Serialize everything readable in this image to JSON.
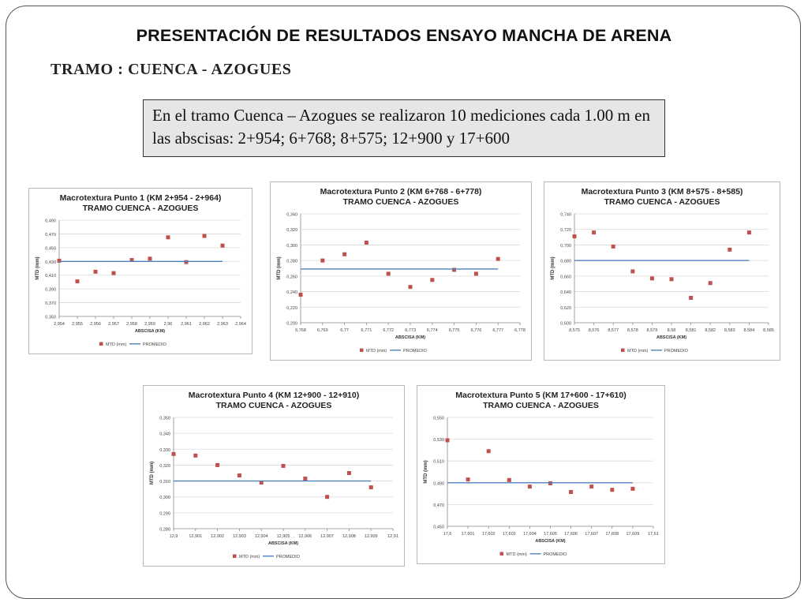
{
  "page": {
    "title": "PRESENTACIÓN DE RESULTADOS ENSAYO MANCHA DE ARENA",
    "subtitle": "TRAMO : CUENCA - AZOGUES",
    "note": "En el tramo Cuenca – Azogues se realizaron 10 mediciones cada 1.00 m en las abscisas: 2+954; 6+768; 8+575; 12+900 y 17+600"
  },
  "colors": {
    "points": "#c0504d",
    "mean_line": "#4f81bd",
    "grid": "#d9d9d9",
    "axis": "#888888"
  },
  "chart_data": [
    {
      "type": "scatter",
      "title": "Macrotextura Punto 1 (KM 2+954 - 2+964)",
      "subtitle": "TRAMO CUENCA - AZOGUES",
      "xlabel": "ABSCISA (KM)",
      "ylabel": "MTD (mm)",
      "x_ticks": [
        "2,954",
        "2,955",
        "2,956",
        "2,957",
        "2,958",
        "2,959",
        "2,96",
        "2,961",
        "2,962",
        "2,963",
        "2,964"
      ],
      "y_ticks": [
        "0,350",
        "0,370",
        "0,390",
        "0,410",
        "0,430",
        "0,450",
        "0,470",
        "0,490"
      ],
      "xlim": [
        2.954,
        2.964
      ],
      "ylim": [
        0.35,
        0.49
      ],
      "series": [
        {
          "name": "MTD (mm)",
          "kind": "points",
          "x": [
            2.954,
            2.955,
            2.956,
            2.957,
            2.958,
            2.959,
            2.96,
            2.961,
            2.962,
            2.963
          ],
          "y": [
            0.431,
            0.401,
            0.415,
            0.413,
            0.432,
            0.434,
            0.465,
            0.429,
            0.467,
            0.453
          ]
        },
        {
          "name": "PROMEDIO",
          "kind": "line",
          "x": [
            2.954,
            2.963
          ],
          "y": [
            0.43,
            0.43
          ]
        }
      ]
    },
    {
      "type": "scatter",
      "title": "Macrotextura Punto 2 (KM 6+768 - 6+778)",
      "subtitle": "TRAMO CUENCA - AZOGUES",
      "xlabel": "ABSCISA (KM)",
      "ylabel": "MTD (mm)",
      "x_ticks": [
        "6,768",
        "6,769",
        "6,77",
        "6,771",
        "6,772",
        "6,773",
        "6,774",
        "6,775",
        "6,776",
        "6,777",
        "6,778"
      ],
      "y_ticks": [
        "0,200",
        "0,220",
        "0,240",
        "0,260",
        "0,280",
        "0,300",
        "0,320",
        "0,340"
      ],
      "xlim": [
        6.768,
        6.778
      ],
      "ylim": [
        0.2,
        0.34
      ],
      "series": [
        {
          "name": "MTD (mm)",
          "kind": "points",
          "x": [
            6.768,
            6.769,
            6.77,
            6.771,
            6.772,
            6.773,
            6.774,
            6.775,
            6.776,
            6.777
          ],
          "y": [
            0.236,
            0.28,
            0.288,
            0.303,
            0.263,
            0.246,
            0.255,
            0.268,
            0.263,
            0.282
          ]
        },
        {
          "name": "PROMEDIO",
          "kind": "line",
          "x": [
            6.768,
            6.777
          ],
          "y": [
            0.269,
            0.269
          ]
        }
      ]
    },
    {
      "type": "scatter",
      "title": "Macrotextura Punto 3 (KM 8+575 - 8+585)",
      "subtitle": "TRAMO CUENCA - AZOGUES",
      "xlabel": "ABSCISA (KM)",
      "ylabel": "MTD (mm)",
      "x_ticks": [
        "8,575",
        "8,576",
        "8,577",
        "8,578",
        "8,579",
        "8,58",
        "8,581",
        "8,582",
        "8,583",
        "8,584",
        "8,585"
      ],
      "y_ticks": [
        "0,600",
        "0,620",
        "0,640",
        "0,660",
        "0,680",
        "0,700",
        "0,720",
        "0,740"
      ],
      "xlim": [
        8.575,
        8.585
      ],
      "ylim": [
        0.6,
        0.74
      ],
      "series": [
        {
          "name": "MTD (mm)",
          "kind": "points",
          "x": [
            8.575,
            8.576,
            8.577,
            8.578,
            8.579,
            8.58,
            8.581,
            8.582,
            8.583,
            8.584
          ],
          "y": [
            0.711,
            0.716,
            0.698,
            0.666,
            0.657,
            0.656,
            0.632,
            0.651,
            0.694,
            0.716
          ]
        },
        {
          "name": "PROMEDIO",
          "kind": "line",
          "x": [
            8.575,
            8.584
          ],
          "y": [
            0.68,
            0.68
          ]
        }
      ]
    },
    {
      "type": "scatter",
      "title": "Macrotextura Punto 4 (KM 12+900 - 12+910)",
      "subtitle": "TRAMO CUENCA - AZOGUES",
      "xlabel": "ABSCISA (KM)",
      "ylabel": "MTD (mm)",
      "x_ticks": [
        "12,9",
        "12,901",
        "12,902",
        "12,903",
        "12,904",
        "12,905",
        "12,906",
        "12,907",
        "12,908",
        "12,909",
        "12,91"
      ],
      "y_ticks": [
        "0,280",
        "0,290",
        "0,300",
        "0,310",
        "0,320",
        "0,330",
        "0,340",
        "0,350"
      ],
      "xlim": [
        12.9,
        12.91
      ],
      "ylim": [
        0.28,
        0.35
      ],
      "series": [
        {
          "name": "MTD (mm)",
          "kind": "points",
          "x": [
            12.9,
            12.901,
            12.902,
            12.903,
            12.904,
            12.905,
            12.906,
            12.907,
            12.908,
            12.909
          ],
          "y": [
            0.327,
            0.326,
            0.32,
            0.3135,
            0.309,
            0.3195,
            0.3115,
            0.3,
            0.315,
            0.306
          ]
        },
        {
          "name": "PROMEDIO",
          "kind": "line",
          "x": [
            12.9,
            12.909
          ],
          "y": [
            0.31,
            0.31
          ]
        }
      ]
    },
    {
      "type": "scatter",
      "title": "Macrotextura Punto 5 (KM 17+600 - 17+610)",
      "subtitle": "TRAMO CUENCA - AZOGUES",
      "xlabel": "ABSCISA (KM)",
      "ylabel": "MTD (mm)",
      "x_ticks": [
        "17,6",
        "17,601",
        "17,602",
        "17,603",
        "17,604",
        "17,605",
        "17,606",
        "17,607",
        "17,608",
        "17,609",
        "17,61"
      ],
      "y_ticks": [
        "0,450",
        "0,470",
        "0,490",
        "0,510",
        "0,530",
        "0,550"
      ],
      "xlim": [
        17.6,
        17.61
      ],
      "ylim": [
        0.45,
        0.55
      ],
      "series": [
        {
          "name": "MTD (mm)",
          "kind": "points",
          "x": [
            17.6,
            17.601,
            17.602,
            17.603,
            17.604,
            17.605,
            17.606,
            17.607,
            17.608,
            17.609
          ],
          "y": [
            0.529,
            0.493,
            0.519,
            0.4925,
            0.4865,
            0.4895,
            0.4815,
            0.4865,
            0.4835,
            0.4845
          ]
        },
        {
          "name": "PROMEDIO",
          "kind": "line",
          "x": [
            17.6,
            17.609
          ],
          "y": [
            0.49,
            0.49
          ]
        }
      ]
    }
  ]
}
